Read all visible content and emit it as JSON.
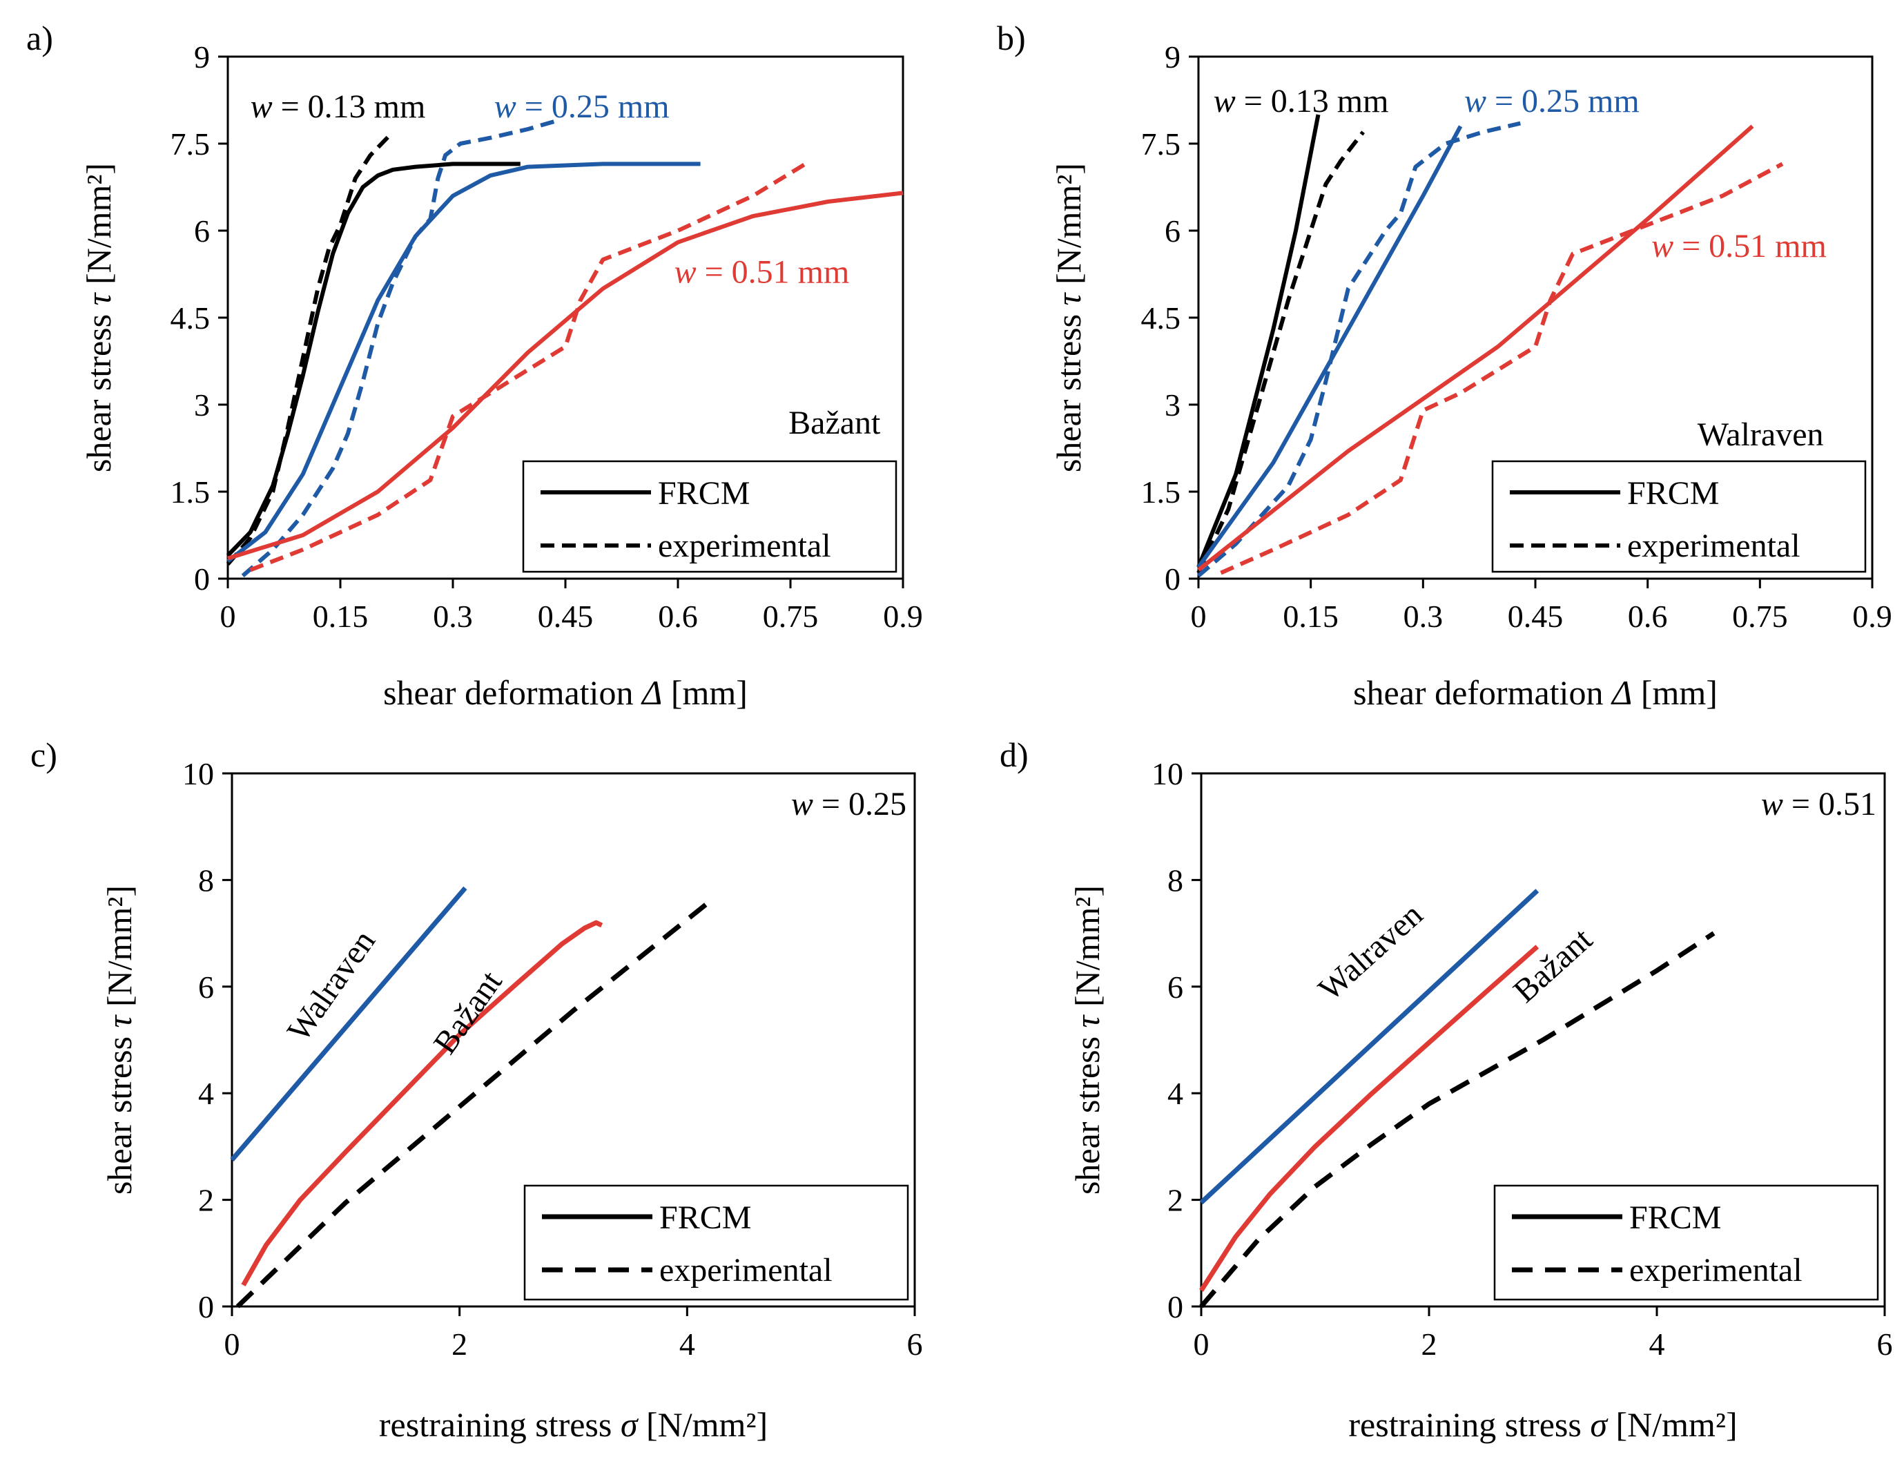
{
  "colors": {
    "black": "#000000",
    "blue": "#1f5aa6",
    "red": "#e03a34"
  },
  "chart_data": [
    {
      "id": "a",
      "type": "line",
      "panel_label": "a)",
      "model_label": "Bažant",
      "title": "",
      "xlabel": "shear deformation",
      "xlabel_symbol": "Δ",
      "xlabel_unit": "[mm]",
      "ylabel": "shear stress",
      "ylabel_symbol": "τ",
      "ylabel_unit": "[N/mm²]",
      "xlim": [
        0,
        0.9
      ],
      "ylim": [
        0,
        9
      ],
      "xticks": [
        "0",
        "0.15",
        "0.3",
        "0.45",
        "0.6",
        "0.75",
        "0.9"
      ],
      "yticks": [
        "0",
        "1.5",
        "3",
        "4.5",
        "6",
        "7.5",
        "9"
      ],
      "annotations": [
        {
          "sym": "w",
          "text": " = 0.13 mm",
          "color": "black"
        },
        {
          "sym": "w",
          "text": " = 0.25 mm",
          "color": "blue"
        },
        {
          "sym": "w",
          "text": " = 0.51 mm",
          "color": "red"
        }
      ],
      "legend": [
        "FRCM",
        "experimental"
      ],
      "series": [
        {
          "name": "w = 0.13 mm FRCM",
          "color": "black",
          "style": "solid",
          "x": [
            0,
            0.03,
            0.06,
            0.08,
            0.1,
            0.12,
            0.14,
            0.16,
            0.18,
            0.2,
            0.22,
            0.25,
            0.3,
            0.35,
            0.39
          ],
          "y": [
            0.4,
            0.8,
            1.6,
            2.5,
            3.5,
            4.6,
            5.6,
            6.3,
            6.75,
            6.95,
            7.05,
            7.1,
            7.15,
            7.15,
            7.15
          ]
        },
        {
          "name": "w = 0.13 mm experimental",
          "color": "black",
          "style": "dashed",
          "x": [
            0,
            0.03,
            0.06,
            0.08,
            0.1,
            0.12,
            0.135,
            0.15,
            0.17,
            0.19,
            0.22
          ],
          "y": [
            0.25,
            0.7,
            1.5,
            2.6,
            3.8,
            5.0,
            5.7,
            6.1,
            6.9,
            7.3,
            7.7
          ]
        },
        {
          "name": "w = 0.25 mm FRCM",
          "color": "blue",
          "style": "solid",
          "x": [
            0,
            0.05,
            0.1,
            0.15,
            0.2,
            0.25,
            0.3,
            0.35,
            0.4,
            0.5,
            0.63
          ],
          "y": [
            0.3,
            0.8,
            1.8,
            3.3,
            4.8,
            5.9,
            6.6,
            6.95,
            7.1,
            7.15,
            7.15
          ]
        },
        {
          "name": "w = 0.25 mm experimental",
          "color": "blue",
          "style": "dashed",
          "x": [
            0.02,
            0.06,
            0.1,
            0.14,
            0.16,
            0.18,
            0.2,
            0.22,
            0.25,
            0.27,
            0.28,
            0.29,
            0.31,
            0.35,
            0.4,
            0.44
          ],
          "y": [
            0.05,
            0.5,
            1.1,
            1.9,
            2.5,
            3.4,
            4.4,
            5.1,
            5.9,
            6.2,
            6.9,
            7.3,
            7.5,
            7.6,
            7.75,
            7.9
          ]
        },
        {
          "name": "w = 0.51 mm FRCM",
          "color": "red",
          "style": "solid",
          "x": [
            0,
            0.1,
            0.2,
            0.3,
            0.4,
            0.5,
            0.6,
            0.7,
            0.8,
            0.9
          ],
          "y": [
            0.35,
            0.75,
            1.5,
            2.6,
            3.9,
            5.0,
            5.8,
            6.25,
            6.5,
            6.65
          ]
        },
        {
          "name": "w = 0.51 mm experimental",
          "color": "red",
          "style": "dashed",
          "x": [
            0.03,
            0.1,
            0.2,
            0.27,
            0.3,
            0.35,
            0.45,
            0.47,
            0.5,
            0.6,
            0.7,
            0.77
          ],
          "y": [
            0.15,
            0.5,
            1.1,
            1.7,
            2.8,
            3.2,
            4.0,
            4.8,
            5.5,
            6.0,
            6.6,
            7.15
          ]
        }
      ]
    },
    {
      "id": "b",
      "type": "line",
      "panel_label": "b)",
      "model_label": "Walraven",
      "title": "",
      "xlabel": "shear deformation",
      "xlabel_symbol": "Δ",
      "xlabel_unit": "[mm]",
      "ylabel": "shear stress",
      "ylabel_symbol": "τ",
      "ylabel_unit": "[N/mm²]",
      "xlim": [
        0,
        0.9
      ],
      "ylim": [
        0,
        9
      ],
      "xticks": [
        "0",
        "0.15",
        "0.3",
        "0.45",
        "0.6",
        "0.75",
        "0.9"
      ],
      "yticks": [
        "0",
        "1.5",
        "3",
        "4.5",
        "6",
        "7.5",
        "9"
      ],
      "annotations": [
        {
          "sym": "w",
          "text": " = 0.13 mm",
          "color": "black"
        },
        {
          "sym": "w",
          "text": " = 0.25 mm",
          "color": "blue"
        },
        {
          "sym": "w",
          "text": " = 0.51 mm",
          "color": "red"
        }
      ],
      "legend": [
        "FRCM",
        "experimental"
      ],
      "series": [
        {
          "name": "w = 0.13 mm FRCM",
          "color": "black",
          "style": "solid",
          "x": [
            0,
            0.05,
            0.1,
            0.13,
            0.16
          ],
          "y": [
            0.2,
            1.8,
            4.3,
            6.0,
            8.0
          ]
        },
        {
          "name": "w = 0.13 mm experimental",
          "color": "black",
          "style": "dashed",
          "x": [
            0,
            0.04,
            0.08,
            0.12,
            0.15,
            0.17,
            0.19,
            0.22
          ],
          "y": [
            0.1,
            1.2,
            3.0,
            4.8,
            6.0,
            6.8,
            7.2,
            7.7
          ]
        },
        {
          "name": "w = 0.25 mm FRCM",
          "color": "blue",
          "style": "solid",
          "x": [
            0,
            0.1,
            0.2,
            0.3,
            0.35
          ],
          "y": [
            0.2,
            2.0,
            4.3,
            6.6,
            7.8
          ]
        },
        {
          "name": "w = 0.25 mm experimental",
          "color": "blue",
          "style": "dashed",
          "x": [
            0,
            0.05,
            0.12,
            0.15,
            0.17,
            0.2,
            0.25,
            0.27,
            0.29,
            0.33,
            0.38,
            0.43
          ],
          "y": [
            0.05,
            0.6,
            1.6,
            2.4,
            3.4,
            5.0,
            6.0,
            6.3,
            7.1,
            7.5,
            7.7,
            7.85
          ]
        },
        {
          "name": "w = 0.51 mm FRCM",
          "color": "red",
          "style": "solid",
          "x": [
            0,
            0.2,
            0.4,
            0.6,
            0.74
          ],
          "y": [
            0.15,
            2.2,
            4.0,
            6.2,
            7.8
          ]
        },
        {
          "name": "w = 0.51 mm experimental",
          "color": "red",
          "style": "dashed",
          "x": [
            0.03,
            0.1,
            0.2,
            0.27,
            0.3,
            0.35,
            0.45,
            0.47,
            0.5,
            0.6,
            0.7,
            0.78
          ],
          "y": [
            0.1,
            0.5,
            1.1,
            1.7,
            2.9,
            3.2,
            4.0,
            4.8,
            5.6,
            6.1,
            6.6,
            7.15
          ]
        }
      ]
    },
    {
      "id": "c",
      "type": "line",
      "panel_label": "c)",
      "title": "",
      "xlabel": "restraining stress",
      "xlabel_symbol": "σ",
      "xlabel_unit": "[N/mm²]",
      "ylabel": "shear stress",
      "ylabel_symbol": "τ",
      "ylabel_unit": "[N/mm²]",
      "xlim": [
        0,
        6
      ],
      "ylim": [
        0,
        10
      ],
      "xticks": [
        "0",
        "2",
        "4",
        "6"
      ],
      "yticks": [
        "0",
        "2",
        "4",
        "6",
        "8",
        "10"
      ],
      "corner_annotation": {
        "sym": "w",
        "text": " = 0.25"
      },
      "curve_labels": [
        {
          "text": "Walraven",
          "color": "black"
        },
        {
          "text": "Bažant",
          "color": "black"
        }
      ],
      "legend": [
        "FRCM",
        "experimental"
      ],
      "series": [
        {
          "name": "Walraven",
          "color": "blue",
          "style": "solid",
          "x": [
            0,
            2.05
          ],
          "y": [
            2.75,
            7.85
          ]
        },
        {
          "name": "Bažant",
          "color": "red",
          "style": "solid",
          "x": [
            0.1,
            0.3,
            0.6,
            1.0,
            1.5,
            2.0,
            2.5,
            2.9,
            3.1,
            3.2,
            3.25
          ],
          "y": [
            0.4,
            1.15,
            2.0,
            2.9,
            4.0,
            5.1,
            6.05,
            6.8,
            7.1,
            7.2,
            7.15
          ]
        },
        {
          "name": "experimental",
          "color": "black",
          "style": "dashed",
          "x": [
            0.05,
            1.0,
            2.0,
            3.0,
            4.2
          ],
          "y": [
            0.0,
            1.95,
            3.75,
            5.55,
            7.6
          ]
        }
      ]
    },
    {
      "id": "d",
      "type": "line",
      "panel_label": "d)",
      "title": "",
      "xlabel": "restraining stress",
      "xlabel_symbol": "σ",
      "xlabel_unit": "[N/mm²]",
      "ylabel": "shear stress",
      "ylabel_symbol": "τ",
      "ylabel_unit": "[N/mm²]",
      "xlim": [
        0,
        6
      ],
      "ylim": [
        0,
        10
      ],
      "xticks": [
        "0",
        "2",
        "4",
        "6"
      ],
      "yticks": [
        "0",
        "2",
        "4",
        "6",
        "8",
        "10"
      ],
      "corner_annotation": {
        "sym": "w",
        "text": " = 0.51"
      },
      "curve_labels": [
        {
          "text": "Walraven",
          "color": "black"
        },
        {
          "text": "Bažant",
          "color": "black"
        }
      ],
      "legend": [
        "FRCM",
        "experimental"
      ],
      "series": [
        {
          "name": "Walraven",
          "color": "blue",
          "style": "solid",
          "x": [
            0,
            2.95
          ],
          "y": [
            1.95,
            7.8
          ]
        },
        {
          "name": "Bažant",
          "color": "red",
          "style": "solid",
          "x": [
            0,
            0.3,
            0.6,
            1.0,
            1.5,
            2.0,
            2.5,
            2.95
          ],
          "y": [
            0.3,
            1.3,
            2.1,
            3.0,
            4.0,
            4.95,
            5.9,
            6.75
          ]
        },
        {
          "name": "experimental",
          "color": "black",
          "style": "dashed",
          "x": [
            0,
            0.5,
            1.0,
            1.5,
            2.0,
            3.0,
            4.0,
            4.5
          ],
          "y": [
            0,
            1.25,
            2.25,
            3.05,
            3.8,
            5.0,
            6.3,
            7.0
          ]
        }
      ]
    }
  ]
}
